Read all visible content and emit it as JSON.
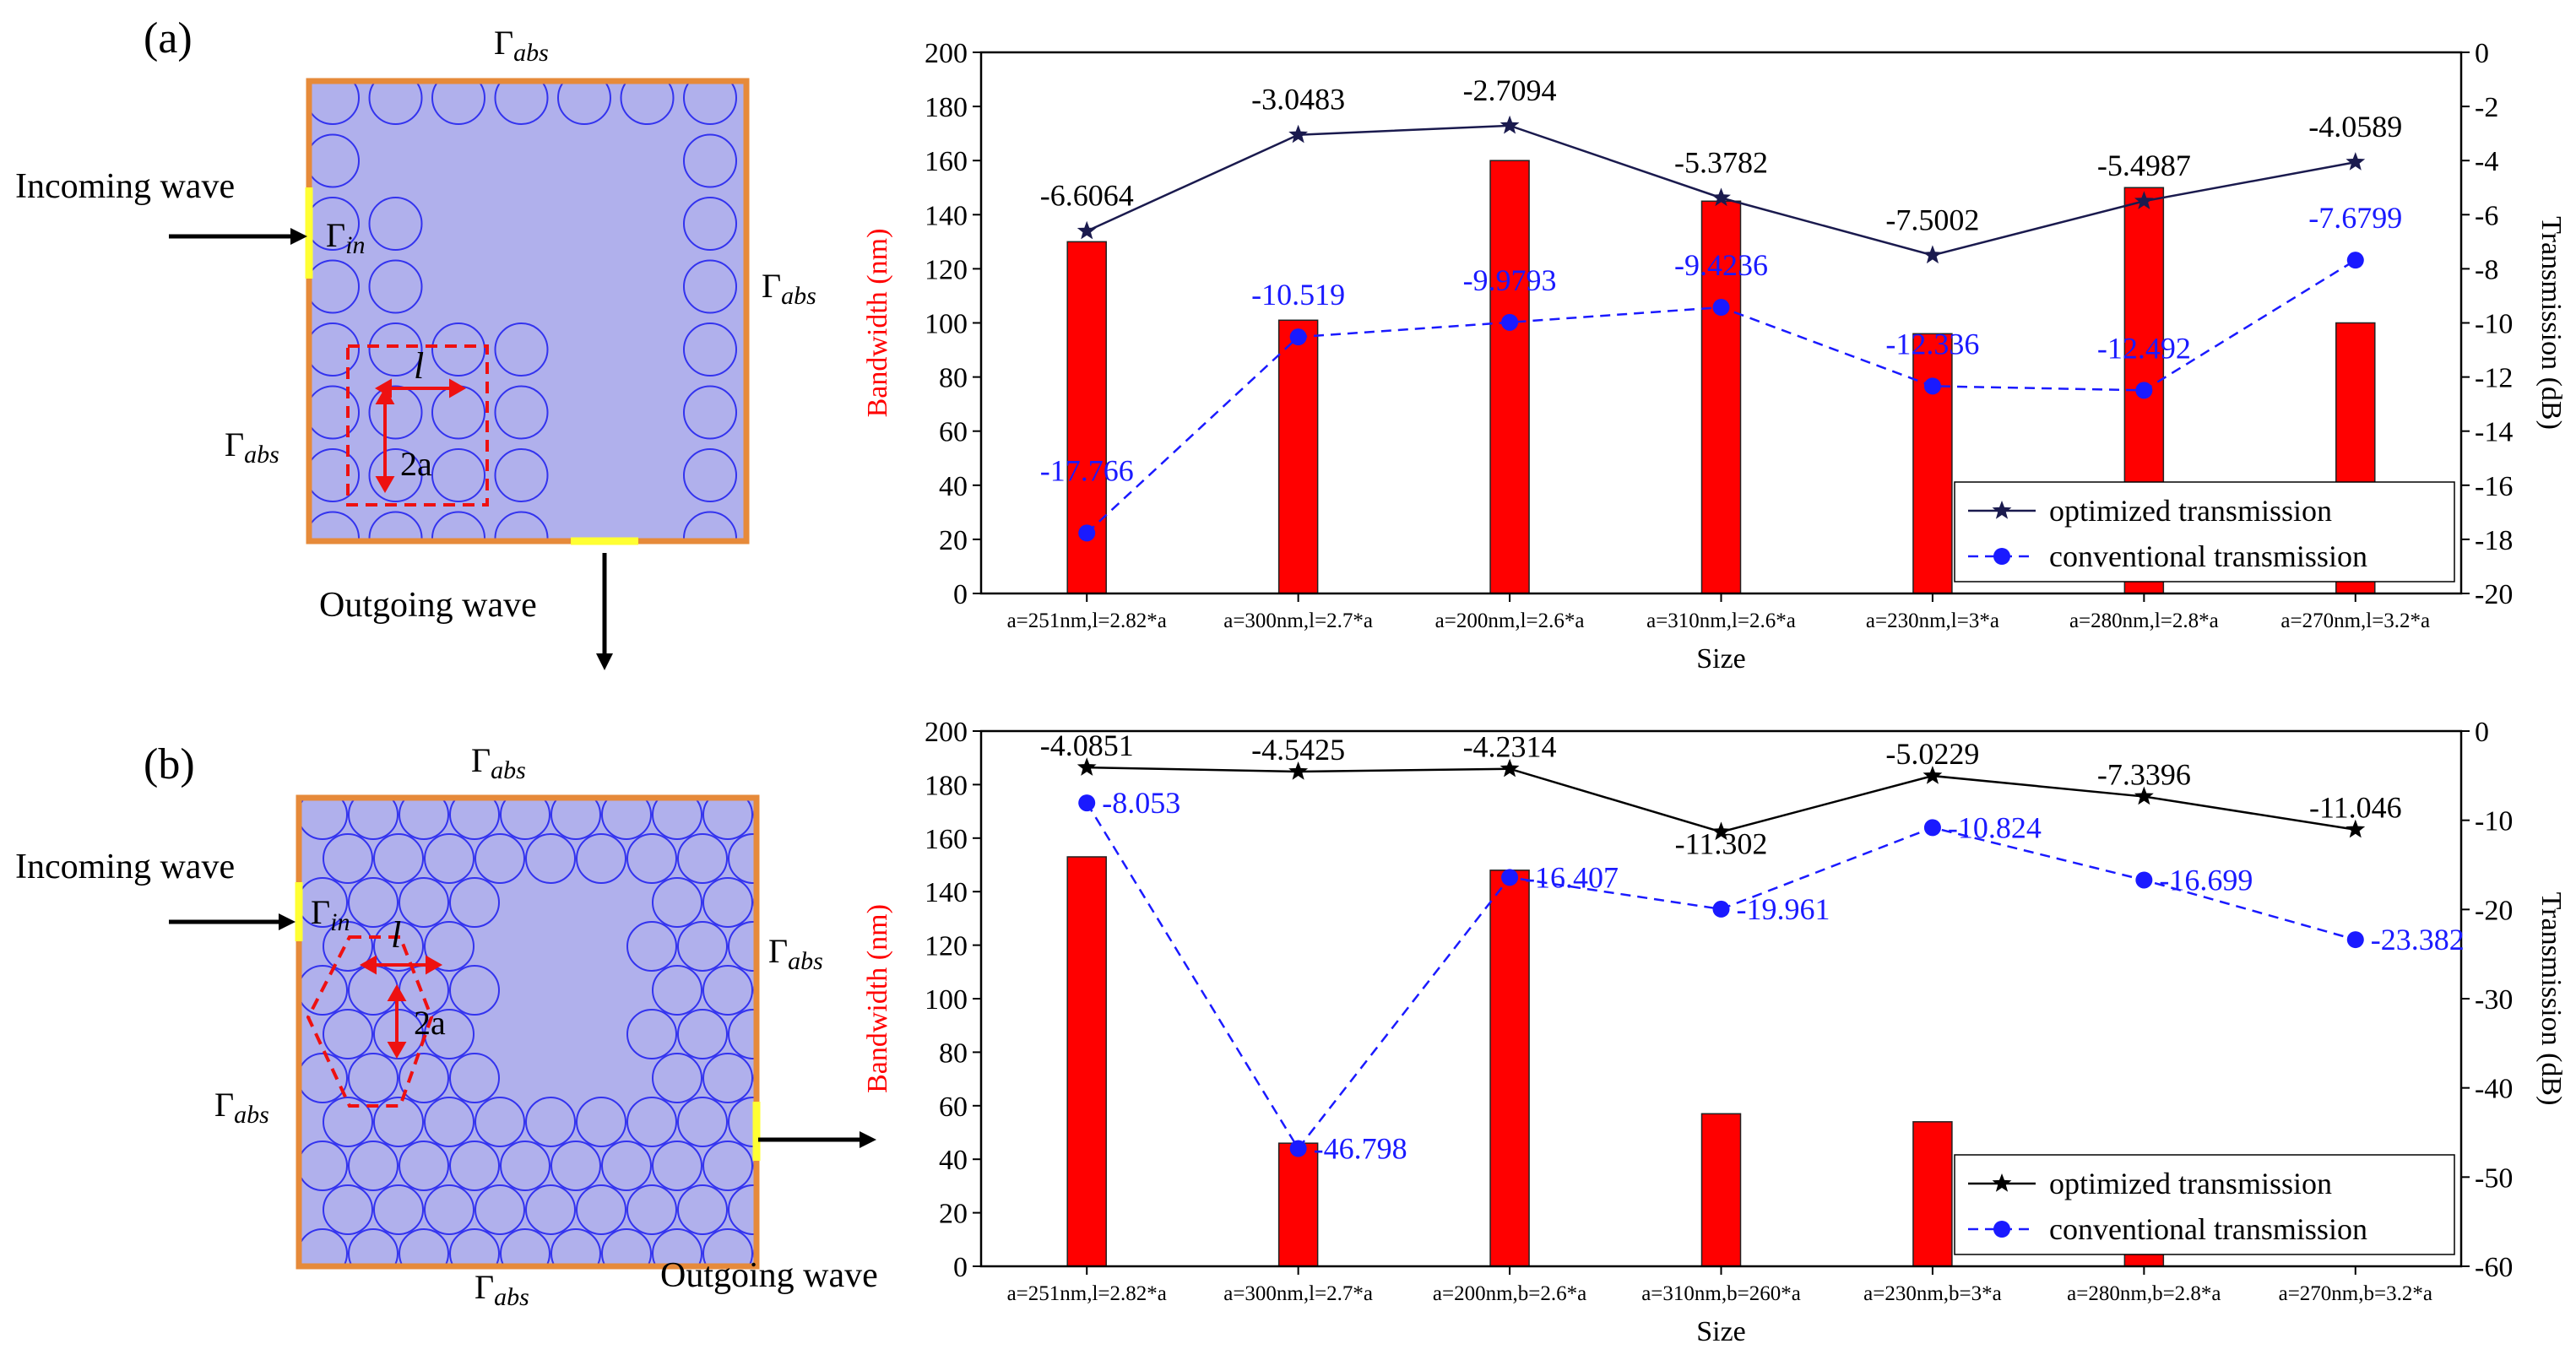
{
  "panels": [
    {
      "label": "(a)",
      "diagram": {
        "lattice": "square",
        "gamma_top": "Γ",
        "gamma_top_sub": "abs",
        "gamma_right": "Γ",
        "gamma_right_sub": "abs",
        "gamma_left": "Γ",
        "gamma_left_sub": "abs",
        "gamma_in": "Γ",
        "gamma_in_sub": "in",
        "incoming": "Incoming wave",
        "outgoing": "Outgoing wave",
        "l_label": "l",
        "a_label": "2a"
      }
    },
    {
      "label": "(b)",
      "diagram": {
        "lattice": "triangular",
        "gamma_top": "Γ",
        "gamma_top_sub": "abs",
        "gamma_right": "Γ",
        "gamma_right_sub": "abs",
        "gamma_left": "Γ",
        "gamma_left_sub": "abs",
        "gamma_bottom": "Γ",
        "gamma_bottom_sub": "abs",
        "gamma_in": "Γ",
        "gamma_in_sub": "in",
        "incoming": "Incoming wave",
        "outgoing": "Outgoing wave",
        "l_label": "l",
        "a_label": "2a"
      }
    }
  ],
  "colors": {
    "bar": "#ff0000",
    "optimized_a": "#1a1a4e",
    "optimized_b": "#000000",
    "conventional": "#1a1aff",
    "diagram_fill": "#b0b0ec",
    "diagram_border": "#e68a3a",
    "port": "#ffff33",
    "hole": "#3333ee",
    "dashed_cell": "#ee1111"
  },
  "chart_data": [
    {
      "type": "bar",
      "categories": [
        "a=251nm,l=2.82*a",
        "a=300nm,l=2.7*a",
        "a=200nm,l=2.6*a",
        "a=310nm,l=2.6*a",
        "a=230nm,l=3*a",
        "a=280nm,l=2.8*a",
        "a=270nm,l=3.2*a"
      ],
      "xlabel": "Size",
      "ylabel": "Bandwidth (nm)",
      "y2label": "Transmission (dB)",
      "ylim": [
        0,
        200
      ],
      "y2lim": [
        -20,
        0
      ],
      "yticks": [
        "0",
        "20",
        "40",
        "60",
        "80",
        "100",
        "120",
        "140",
        "160",
        "180",
        "200"
      ],
      "y2ticks": [
        "0",
        "-2",
        "-4",
        "-6",
        "-8",
        "-10",
        "-12",
        "-14",
        "-16",
        "-18",
        "-20"
      ],
      "bandwidth": [
        130,
        101,
        160,
        145,
        96,
        150,
        100
      ],
      "series": [
        {
          "name": "optimized transmission",
          "axis": "right",
          "marker": "star",
          "values": [
            -6.6064,
            -3.0483,
            -2.7094,
            -5.3782,
            -7.5002,
            -5.4987,
            -4.0589
          ],
          "labels": [
            "-6.6064",
            "-3.0483",
            "-2.7094",
            "-5.3782",
            "-7.5002",
            "-5.4987",
            "-4.0589"
          ]
        },
        {
          "name": "conventional transmission",
          "axis": "right",
          "marker": "circle",
          "dashed": true,
          "values": [
            -17.766,
            -10.519,
            -9.9793,
            -9.4236,
            -12.336,
            -12.492,
            -7.6799
          ],
          "labels": [
            "-17.766",
            "-10.519",
            "-9.9793",
            "-9.4236",
            "-12.336",
            "-12.492",
            "-7.6799"
          ]
        }
      ],
      "legend": "bottom-right"
    },
    {
      "type": "bar",
      "categories": [
        "a=251nm,l=2.82*a",
        "a=300nm,l=2.7*a",
        "a=200nm,b=2.6*a",
        "a=310nm,b=260*a",
        "a=230nm,b=3*a",
        "a=280nm,b=2.8*a",
        "a=270nm,b=3.2*a"
      ],
      "xlabel": "Size",
      "ylabel": "Bandwidth (nm)",
      "y2label": "Transmission (dB)",
      "ylim": [
        0,
        200
      ],
      "y2lim": [
        -60,
        0
      ],
      "yticks": [
        "0",
        "20",
        "40",
        "60",
        "80",
        "100",
        "120",
        "140",
        "160",
        "180",
        "200"
      ],
      "y2ticks": [
        "0",
        "-10",
        "-20",
        "-30",
        "-40",
        "-50",
        "-60"
      ],
      "bandwidth": [
        153,
        46,
        148,
        57,
        54,
        27,
        0
      ],
      "series": [
        {
          "name": "optimized transmission",
          "axis": "right",
          "marker": "star",
          "values": [
            -4.0851,
            -4.5425,
            -4.2314,
            -11.302,
            -5.0229,
            -7.3396,
            -11.046
          ],
          "labels": [
            "-4.0851",
            "-4.5425",
            "-4.2314",
            "-11.302",
            "-5.0229",
            "-7.3396",
            "-11.046"
          ]
        },
        {
          "name": "conventional transmission",
          "axis": "right",
          "marker": "circle",
          "dashed": true,
          "values": [
            -8.053,
            -46.798,
            -16.407,
            -19.961,
            -10.824,
            -16.699,
            -23.382
          ],
          "labels": [
            "-8.053",
            "-46.798",
            "-16.407",
            "-19.961",
            "-10.824",
            "-16.699",
            "-23.382"
          ]
        }
      ],
      "legend": "bottom-right"
    }
  ]
}
